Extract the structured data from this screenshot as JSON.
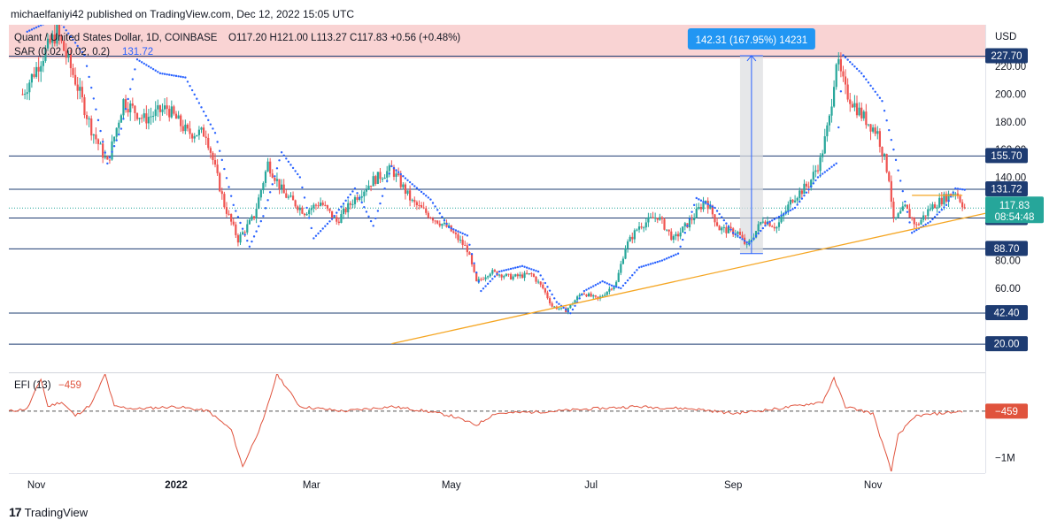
{
  "publisher": "michaelfaniyi42 published on TradingView.com, Dec 12, 2022 15:05 UTC",
  "brand": "TradingView",
  "legend": {
    "symbol": "Quant / United States Dollar, 1D, COINBASE",
    "ohlc": "O117.20 H121.00 L113.27 C117.83 +0.56 (+0.48%)",
    "sar": "SAR (0.02, 0.02, 0.2)",
    "sar_value": "131.72",
    "efi": "EFI (13)",
    "efi_value": "−459"
  },
  "currency": "USD",
  "measure_label": "142.31 (167.95%) 14231",
  "price_badge": {
    "price": "117.83",
    "countdown": "08:54:48"
  },
  "colors": {
    "up": "#26a69a",
    "down": "#ef5350",
    "sar": "#2962ff",
    "trend": "#f5a623",
    "level": "#1e3c72",
    "efi": "#e0533d",
    "measure_fill": "#dcdde0",
    "measure_line": "#2962ff",
    "header_band": "#f9d3d3"
  },
  "chart_data": {
    "type": "candlestick",
    "title": "Quant / United States Dollar, 1D, COINBASE",
    "y_unit": "USD",
    "y_ticks": [
      "220.00",
      "200.00",
      "180.00",
      "160.00",
      "140.00",
      "80.00",
      "60.00"
    ],
    "y_tick_values": [
      220,
      200,
      180,
      160,
      140,
      80,
      60
    ],
    "x_ticks": [
      "Nov",
      "2022",
      "Mar",
      "May",
      "Jul",
      "Sep",
      "Nov"
    ],
    "x_tick_dates": [
      "2021-11-01",
      "2022-01-01",
      "2022-03-01",
      "2022-05-01",
      "2022-07-01",
      "2022-09-01",
      "2022-11-01"
    ],
    "x_range": [
      "2021-10-20",
      "2022-12-20"
    ],
    "horizontal_levels": [
      227.7,
      155.7,
      131.72,
      111.0,
      88.7,
      42.4,
      20.0
    ],
    "horizontal_level_labels": [
      "227.70",
      "155.70",
      "131.72",
      "111.00",
      "88.70",
      "42.40",
      "20.00"
    ],
    "last_close": 117.83,
    "price_path": [
      [
        "2021-10-26",
        200
      ],
      [
        "2021-11-03",
        225
      ],
      [
        "2021-11-10",
        245
      ],
      [
        "2021-11-18",
        210
      ],
      [
        "2021-11-25",
        175
      ],
      [
        "2021-12-02",
        150
      ],
      [
        "2021-12-09",
        195
      ],
      [
        "2021-12-18",
        182
      ],
      [
        "2021-12-28",
        190
      ],
      [
        "2022-01-06",
        172
      ],
      [
        "2022-01-14",
        172
      ],
      [
        "2022-01-22",
        120
      ],
      [
        "2022-01-28",
        95
      ],
      [
        "2022-02-04",
        112
      ],
      [
        "2022-02-10",
        150
      ],
      [
        "2022-02-17",
        128
      ],
      [
        "2022-02-26",
        115
      ],
      [
        "2022-03-05",
        122
      ],
      [
        "2022-03-12",
        108
      ],
      [
        "2022-03-20",
        125
      ],
      [
        "2022-03-28",
        138
      ],
      [
        "2022-04-05",
        146
      ],
      [
        "2022-04-14",
        122
      ],
      [
        "2022-04-22",
        112
      ],
      [
        "2022-04-30",
        103
      ],
      [
        "2022-05-08",
        88
      ],
      [
        "2022-05-12",
        64
      ],
      [
        "2022-05-18",
        72
      ],
      [
        "2022-05-27",
        68
      ],
      [
        "2022-06-05",
        70
      ],
      [
        "2022-06-10",
        60
      ],
      [
        "2022-06-14",
        47
      ],
      [
        "2022-06-20",
        44
      ],
      [
        "2022-06-27",
        57
      ],
      [
        "2022-07-04",
        52
      ],
      [
        "2022-07-12",
        64
      ],
      [
        "2022-07-16",
        90
      ],
      [
        "2022-07-22",
        105
      ],
      [
        "2022-07-30",
        112
      ],
      [
        "2022-08-06",
        95
      ],
      [
        "2022-08-14",
        110
      ],
      [
        "2022-08-20",
        124
      ],
      [
        "2022-08-26",
        103
      ],
      [
        "2022-09-03",
        100
      ],
      [
        "2022-09-07",
        90
      ],
      [
        "2022-09-14",
        110
      ],
      [
        "2022-09-20",
        104
      ],
      [
        "2022-09-27",
        125
      ],
      [
        "2022-10-04",
        135
      ],
      [
        "2022-10-09",
        152
      ],
      [
        "2022-10-13",
        182
      ],
      [
        "2022-10-16",
        225
      ],
      [
        "2022-10-20",
        202
      ],
      [
        "2022-10-27",
        185
      ],
      [
        "2022-11-03",
        172
      ],
      [
        "2022-11-08",
        140
      ],
      [
        "2022-11-10",
        108
      ],
      [
        "2022-11-15",
        118
      ],
      [
        "2022-11-20",
        105
      ],
      [
        "2022-11-26",
        118
      ],
      [
        "2022-12-02",
        125
      ],
      [
        "2022-12-07",
        130
      ],
      [
        "2022-12-11",
        118
      ]
    ],
    "sar_points": [
      [
        "2021-10-28",
        245
      ],
      [
        "2021-11-10",
        255
      ],
      [
        "2021-11-22",
        228
      ],
      [
        "2021-12-02",
        150
      ],
      [
        "2021-12-08",
        175
      ],
      [
        "2021-12-15",
        225
      ],
      [
        "2021-12-25",
        215
      ],
      [
        "2022-01-05",
        212
      ],
      [
        "2022-01-18",
        172
      ],
      [
        "2022-01-26",
        120
      ],
      [
        "2022-02-02",
        90
      ],
      [
        "2022-02-08",
        112
      ],
      [
        "2022-02-16",
        158
      ],
      [
        "2022-02-24",
        140
      ],
      [
        "2022-03-02",
        96
      ],
      [
        "2022-03-10",
        110
      ],
      [
        "2022-03-20",
        132
      ],
      [
        "2022-03-28",
        105
      ],
      [
        "2022-04-05",
        148
      ],
      [
        "2022-04-14",
        135
      ],
      [
        "2022-04-22",
        124
      ],
      [
        "2022-04-30",
        104
      ],
      [
        "2022-05-08",
        98
      ],
      [
        "2022-05-14",
        58
      ],
      [
        "2022-05-22",
        72
      ],
      [
        "2022-06-01",
        76
      ],
      [
        "2022-06-08",
        72
      ],
      [
        "2022-06-16",
        50
      ],
      [
        "2022-06-22",
        42
      ],
      [
        "2022-06-28",
        58
      ],
      [
        "2022-07-06",
        65
      ],
      [
        "2022-07-10",
        62
      ],
      [
        "2022-07-14",
        60
      ],
      [
        "2022-07-22",
        75
      ],
      [
        "2022-08-01",
        80
      ],
      [
        "2022-08-08",
        85
      ],
      [
        "2022-08-16",
        125
      ],
      [
        "2022-08-24",
        118
      ],
      [
        "2022-09-01",
        100
      ],
      [
        "2022-09-08",
        92
      ],
      [
        "2022-09-16",
        107
      ],
      [
        "2022-09-28",
        118
      ],
      [
        "2022-10-08",
        140
      ],
      [
        "2022-10-16",
        150
      ],
      [
        "2022-10-19",
        228
      ],
      [
        "2022-10-27",
        215
      ],
      [
        "2022-11-05",
        195
      ],
      [
        "2022-11-10",
        160
      ],
      [
        "2022-11-18",
        100
      ],
      [
        "2022-11-26",
        108
      ],
      [
        "2022-12-03",
        120
      ],
      [
        "2022-12-07",
        132
      ],
      [
        "2022-12-11",
        131
      ]
    ],
    "trend_line": {
      "start": [
        "2022-04-05",
        20
      ],
      "end": [
        "2022-12-20",
        114
      ]
    },
    "resistance_segment": {
      "start": [
        "2022-11-18",
        127
      ],
      "end": [
        "2022-12-10",
        127
      ]
    },
    "measure": {
      "start": "2022-09-04",
      "end": "2022-09-14",
      "low": 85,
      "high": 227.7
    },
    "efi_panel": {
      "title": "EFI (13)",
      "y_ticks": [
        "−1M"
      ],
      "y_tick_values": [
        -1000000
      ],
      "zero_label": "−459",
      "series": [
        [
          "2021-10-20",
          0
        ],
        [
          "2021-10-28",
          50000
        ],
        [
          "2021-11-03",
          700000
        ],
        [
          "2021-11-06",
          100000
        ],
        [
          "2021-11-12",
          200000
        ],
        [
          "2021-11-18",
          -100000
        ],
        [
          "2021-11-25",
          150000
        ],
        [
          "2021-12-01",
          800000
        ],
        [
          "2021-12-05",
          100000
        ],
        [
          "2021-12-15",
          50000
        ],
        [
          "2022-01-01",
          100000
        ],
        [
          "2022-01-15",
          0
        ],
        [
          "2022-01-25",
          -400000
        ],
        [
          "2022-01-30",
          -1200000
        ],
        [
          "2022-02-08",
          -200000
        ],
        [
          "2022-02-14",
          800000
        ],
        [
          "2022-02-24",
          100000
        ],
        [
          "2022-03-15",
          0
        ],
        [
          "2022-04-05",
          100000
        ],
        [
          "2022-04-20",
          0
        ],
        [
          "2022-05-01",
          -100000
        ],
        [
          "2022-05-12",
          -300000
        ],
        [
          "2022-05-20",
          -50000
        ],
        [
          "2022-06-15",
          0
        ],
        [
          "2022-07-01",
          50000
        ],
        [
          "2022-07-20",
          100000
        ],
        [
          "2022-08-15",
          50000
        ],
        [
          "2022-09-01",
          -50000
        ],
        [
          "2022-09-20",
          50000
        ],
        [
          "2022-10-10",
          200000
        ],
        [
          "2022-10-15",
          700000
        ],
        [
          "2022-10-20",
          100000
        ],
        [
          "2022-11-01",
          -50000
        ],
        [
          "2022-11-09",
          -1300000
        ],
        [
          "2022-11-12",
          -500000
        ],
        [
          "2022-11-20",
          -100000
        ],
        [
          "2022-12-10",
          0
        ]
      ]
    }
  }
}
